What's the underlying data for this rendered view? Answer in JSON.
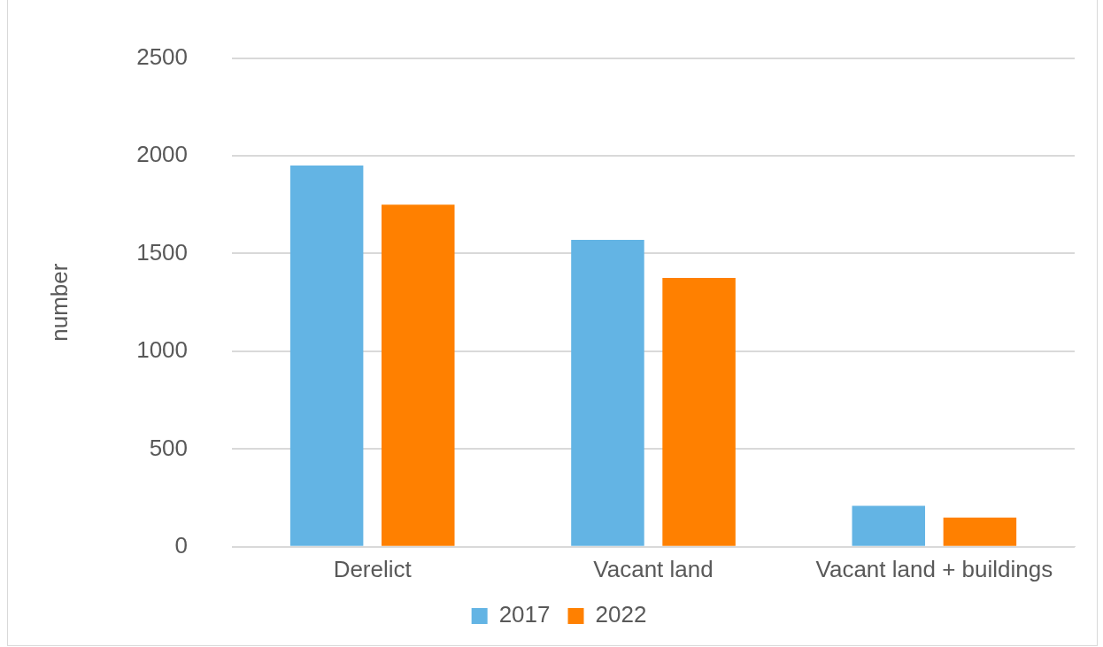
{
  "chart_data": {
    "type": "bar",
    "ylabel": "number",
    "categories": [
      "Derelict",
      "Vacant land",
      "Vacant land + buildings"
    ],
    "series": [
      {
        "name": "2017",
        "color": "#63b4e4",
        "values": [
          1950,
          1570,
          210
        ]
      },
      {
        "name": "2022",
        "color": "#ff8000",
        "values": [
          1750,
          1375,
          150
        ]
      }
    ],
    "ylim": [
      0,
      2500
    ],
    "yticks": [
      0,
      500,
      1000,
      1500,
      2000,
      2500
    ],
    "grid": "y",
    "legend": "bottom"
  }
}
